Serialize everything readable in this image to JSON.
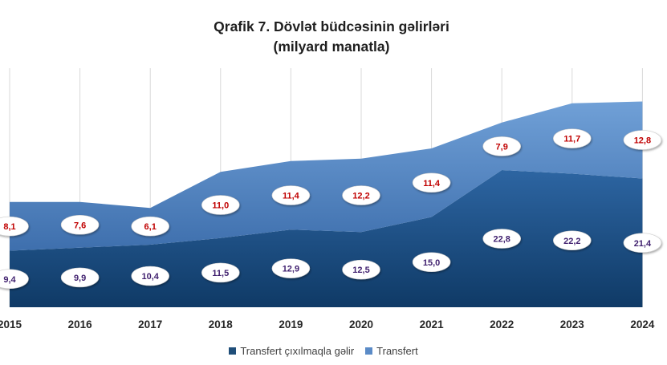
{
  "chart_data": {
    "type": "area",
    "stacked": true,
    "title": "Qrafik 7. Dövlət büdcəsinin gəlirləri",
    "subtitle": "(milyard manatla)",
    "categories": [
      "2015",
      "2016",
      "2017",
      "2018",
      "2019",
      "2020",
      "2021",
      "2022",
      "2023",
      "2024"
    ],
    "ylim": [
      0,
      40
    ],
    "grid": "vertical",
    "legend": "bottom",
    "series": [
      {
        "name": "Transfert çıxılmaqla gəlir",
        "values": [
          9.4,
          9.9,
          10.4,
          11.5,
          12.9,
          12.5,
          15.0,
          22.8,
          22.2,
          21.4
        ],
        "data_labels": [
          "9,4",
          "9,9",
          "10,4",
          "11,5",
          "12,9",
          "12,5",
          "15,0",
          "22,8",
          "22,2",
          "21,4"
        ],
        "color": "#1f4e79",
        "label_color": "#3f1f6e"
      },
      {
        "name": "Transfert",
        "values": [
          8.1,
          7.6,
          6.1,
          11.0,
          11.4,
          12.2,
          11.4,
          7.9,
          11.7,
          12.8
        ],
        "data_labels": [
          "8,1",
          "7,6",
          "6,1",
          "11,0",
          "11,4",
          "12,2",
          "11,4",
          "7,9",
          "11,7",
          "12,8"
        ],
        "color": "#5b8bc7",
        "label_color": "#c00000"
      }
    ]
  }
}
